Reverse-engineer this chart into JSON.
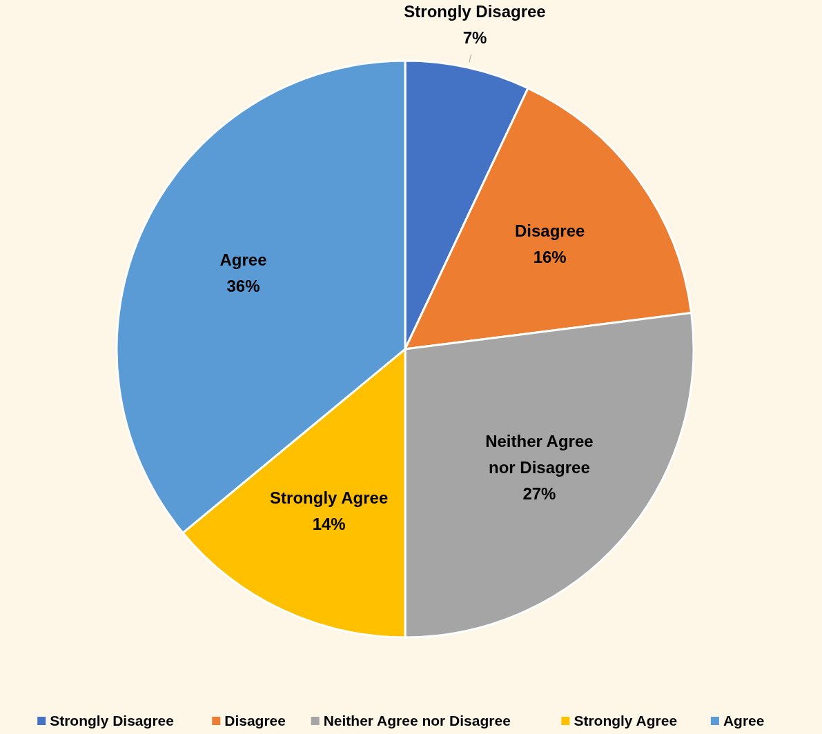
{
  "chart_data": {
    "type": "pie",
    "categories": [
      "Strongly Disagree",
      "Disagree",
      "Neither Agree nor Disagree",
      "Strongly Agree",
      "Agree"
    ],
    "values": [
      7,
      16,
      27,
      14,
      36
    ],
    "colors": [
      "#4472c4",
      "#ed7d31",
      "#a5a5a5",
      "#ffc000",
      "#5b9bd5"
    ],
    "value_labels": [
      "7%",
      "16%",
      "27%",
      "14%",
      "36%"
    ],
    "legend": "bottom"
  }
}
